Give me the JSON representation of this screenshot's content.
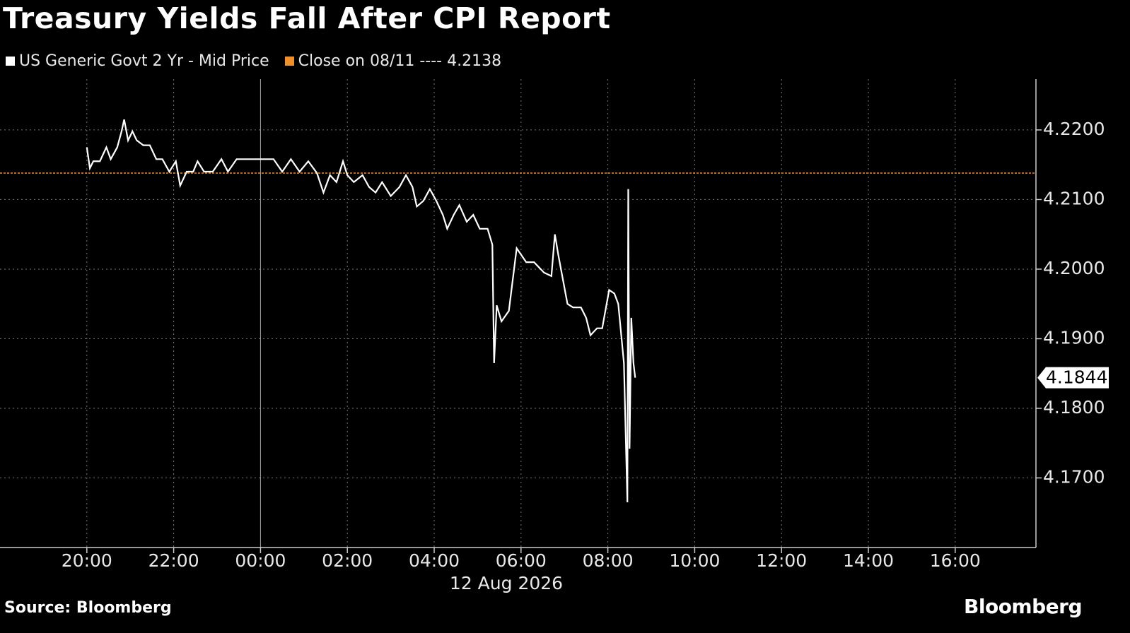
{
  "chart_data": {
    "type": "line",
    "title": "Treasury Yields Fall After CPI Report",
    "x_label": "12 Aug 2026",
    "source": "Source: Bloomberg",
    "brand": "Bloomberg",
    "xlim": [
      -6,
      17.86
    ],
    "ylim": [
      4.16,
      4.2273
    ],
    "xticks": [
      {
        "value": -4,
        "label": "20:00"
      },
      {
        "value": -2,
        "label": "22:00"
      },
      {
        "value": 0,
        "label": "00:00"
      },
      {
        "value": 2,
        "label": "02:00"
      },
      {
        "value": 4,
        "label": "04:00"
      },
      {
        "value": 6,
        "label": "06:00"
      },
      {
        "value": 8,
        "label": "08:00"
      },
      {
        "value": 10,
        "label": "10:00"
      },
      {
        "value": 12,
        "label": "12:00"
      },
      {
        "value": 14,
        "label": "14:00"
      },
      {
        "value": 16,
        "label": "16:00"
      }
    ],
    "yticks": [
      {
        "value": 4.17,
        "label": "4.1700"
      },
      {
        "value": 4.18,
        "label": "4.1800"
      },
      {
        "value": 4.19,
        "label": "4.1900"
      },
      {
        "value": 4.2,
        "label": "4.2000"
      },
      {
        "value": 4.21,
        "label": "4.2100"
      },
      {
        "value": 4.22,
        "label": "4.2200"
      }
    ],
    "grid": true,
    "series": [
      {
        "name": "US Generic Govt 2 Yr - Mid Price",
        "color": "#ffffff",
        "x": [
          -4.0,
          -3.93,
          -3.85,
          -3.7,
          -3.55,
          -3.45,
          -3.3,
          -3.2,
          -3.14,
          -3.05,
          -2.95,
          -2.85,
          -2.7,
          -2.55,
          -2.4,
          -2.26,
          -2.1,
          -1.95,
          -1.85,
          -1.7,
          -1.55,
          -1.45,
          -1.3,
          -1.1,
          -0.9,
          -0.75,
          -0.55,
          -0.4,
          -0.2,
          0.0,
          0.3,
          0.5,
          0.7,
          0.9,
          1.1,
          1.3,
          1.45,
          1.6,
          1.75,
          1.9,
          2.0,
          2.15,
          2.35,
          2.5,
          2.65,
          2.8,
          3.0,
          3.2,
          3.35,
          3.5,
          3.6,
          3.75,
          3.9,
          4.05,
          4.2,
          4.3,
          4.45,
          4.58,
          4.75,
          4.9,
          5.05,
          5.23,
          5.34,
          5.38,
          5.44,
          5.55,
          5.72,
          5.9,
          6.12,
          6.3,
          6.53,
          6.7,
          6.78,
          6.86,
          7.07,
          7.2,
          7.38,
          7.5,
          7.6,
          7.75,
          7.87,
          8.03,
          8.15,
          8.24,
          8.37,
          8.45,
          8.47,
          8.5,
          8.54,
          8.59,
          8.63
        ],
        "values": [
          4.2175,
          4.2145,
          4.2155,
          4.2155,
          4.2175,
          4.2158,
          4.2175,
          4.2198,
          4.2215,
          4.2185,
          4.2198,
          4.2185,
          4.2178,
          4.2178,
          4.2158,
          4.2158,
          4.214,
          4.2155,
          4.212,
          4.214,
          4.214,
          4.2155,
          4.214,
          4.214,
          4.2158,
          4.214,
          4.2158,
          4.2158,
          4.2158,
          4.2158,
          4.2158,
          4.214,
          4.2158,
          4.214,
          4.2155,
          4.2138,
          4.211,
          4.2135,
          4.2125,
          4.2155,
          4.2135,
          4.2125,
          4.2135,
          4.2118,
          4.211,
          4.2125,
          4.2105,
          4.2118,
          4.2135,
          4.2118,
          4.209,
          4.2098,
          4.2115,
          4.2098,
          4.2078,
          4.2058,
          4.2078,
          4.2092,
          4.2068,
          4.2078,
          4.2058,
          4.2058,
          4.2035,
          4.1865,
          4.1948,
          4.1925,
          4.194,
          4.203,
          4.201,
          4.201,
          4.1995,
          4.199,
          4.205,
          4.202,
          4.195,
          4.1945,
          4.1945,
          4.193,
          4.1905,
          4.1915,
          4.1915,
          4.197,
          4.1965,
          4.195,
          4.1865,
          4.1665,
          4.2115,
          4.1742,
          4.193,
          4.1865,
          4.1844
        ]
      }
    ],
    "reference": {
      "name": "Close on 08/11 ----",
      "value": 4.2138,
      "color": "#f0902a"
    }
  }
}
